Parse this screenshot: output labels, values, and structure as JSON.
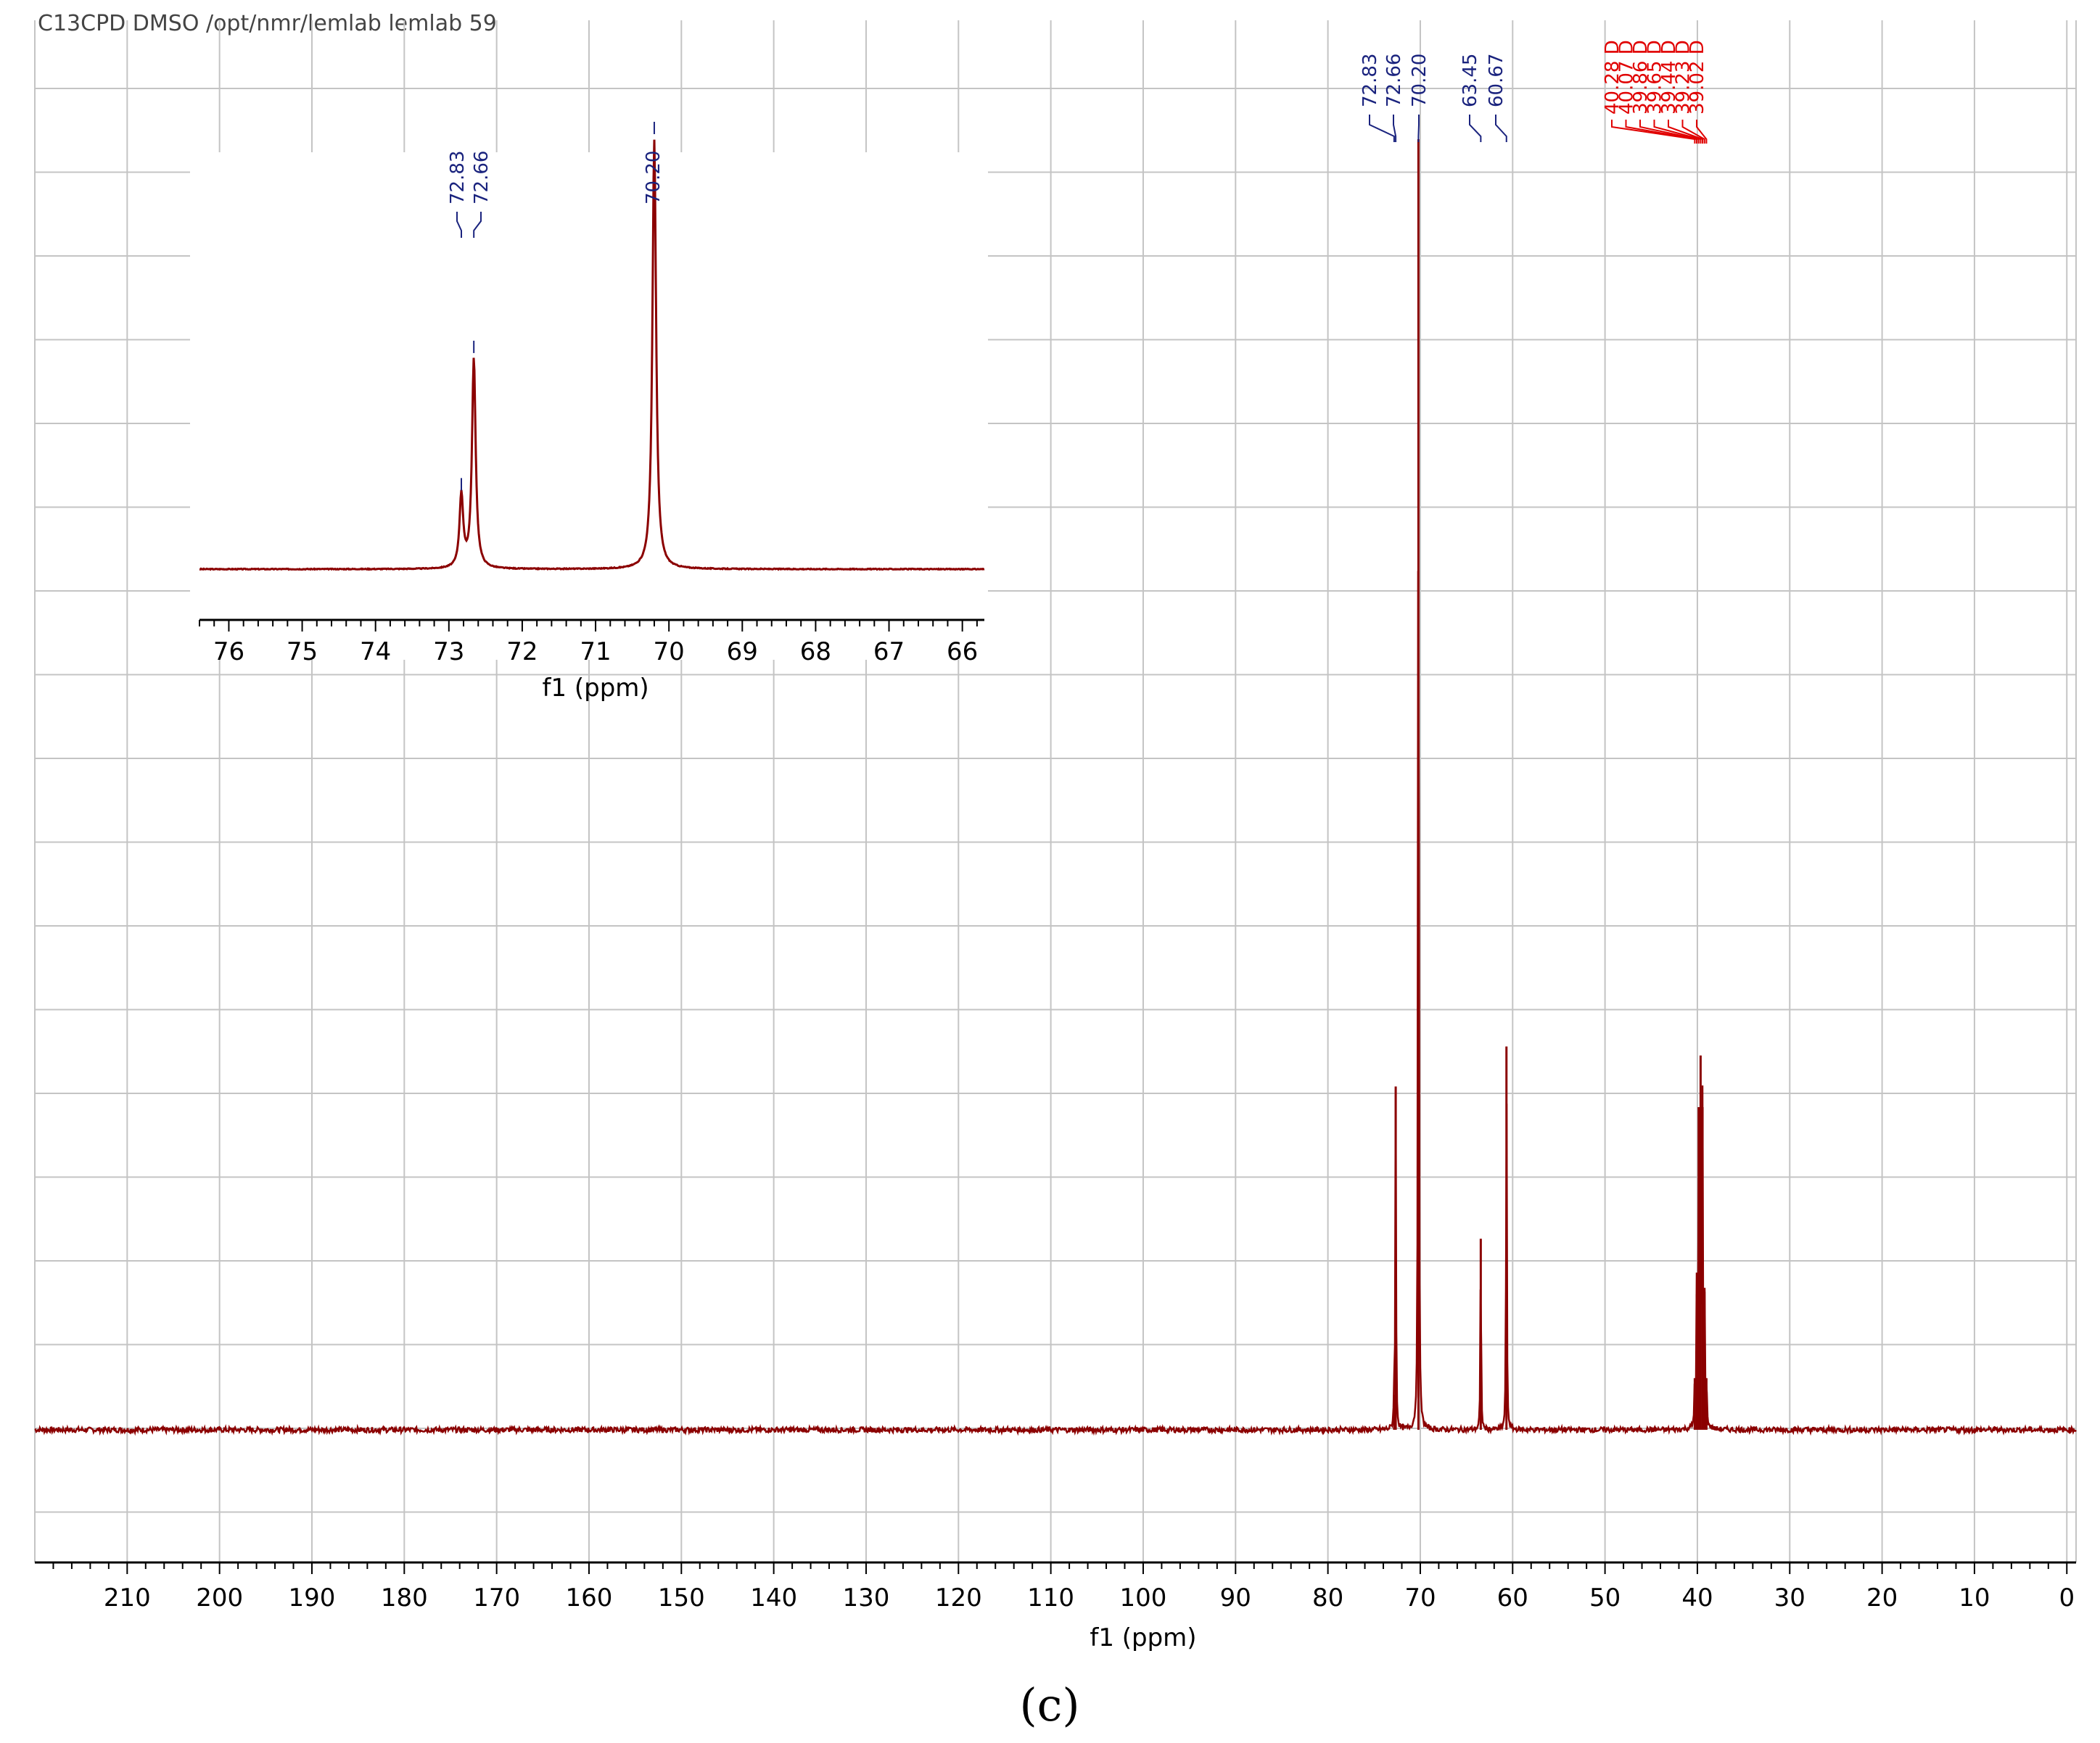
{
  "header_text": "C13CPD DMSO /opt/nmr/lemlab lemlab 59",
  "panel_label": "(c)",
  "colors": {
    "spectrum": "#8b0000",
    "grid": "#c4c4c4",
    "peak_label_blue": "#1a237e",
    "peak_label_red": "#e00000",
    "axis": "#000000"
  },
  "chart_data": [
    {
      "type": "line",
      "title": "",
      "xlabel": "f1 (ppm)",
      "ylabel": "",
      "xlim": [
        220,
        -1
      ],
      "x_reversed": true,
      "x_ticks": [
        210,
        200,
        190,
        180,
        170,
        160,
        150,
        140,
        130,
        120,
        110,
        100,
        90,
        80,
        70,
        60,
        50,
        40,
        30,
        20,
        10,
        0
      ],
      "grid": true,
      "legend": "none",
      "peaks": [
        {
          "ppm": 72.83,
          "height": 0.027
        },
        {
          "ppm": 72.66,
          "height": 0.266
        },
        {
          "ppm": 70.2,
          "height": 1.0
        },
        {
          "ppm": 63.45,
          "height": 0.148
        },
        {
          "ppm": 60.67,
          "height": 0.297
        },
        {
          "ppm": 40.28,
          "height": 0.04
        },
        {
          "ppm": 40.07,
          "height": 0.105
        },
        {
          "ppm": 39.86,
          "height": 0.25
        },
        {
          "ppm": 39.65,
          "height": 0.29
        },
        {
          "ppm": 39.44,
          "height": 0.25
        },
        {
          "ppm": 39.23,
          "height": 0.11
        },
        {
          "ppm": 39.02,
          "height": 0.04
        }
      ],
      "peak_labels": [
        {
          "text": "72.83",
          "ppm": 72.83,
          "group": "blue"
        },
        {
          "text": "72.66",
          "ppm": 72.66,
          "group": "blue"
        },
        {
          "text": "70.20",
          "ppm": 70.2,
          "group": "blue"
        },
        {
          "text": "63.45",
          "ppm": 63.45,
          "group": "blue"
        },
        {
          "text": "60.67",
          "ppm": 60.67,
          "group": "blue"
        },
        {
          "text": "40.28 D",
          "ppm": 40.28,
          "group": "red"
        },
        {
          "text": "40.07 D",
          "ppm": 40.07,
          "group": "red"
        },
        {
          "text": "39.86 D",
          "ppm": 39.86,
          "group": "red"
        },
        {
          "text": "39.65 D",
          "ppm": 39.65,
          "group": "red"
        },
        {
          "text": "39.44 D",
          "ppm": 39.44,
          "group": "red"
        },
        {
          "text": "39.23 D",
          "ppm": 39.23,
          "group": "red"
        },
        {
          "text": "39.02 D",
          "ppm": 39.02,
          "group": "red"
        }
      ]
    },
    {
      "type": "line",
      "title": "",
      "xlabel": "f1 (ppm)",
      "ylabel": "",
      "xlim": [
        76.4,
        65.7
      ],
      "x_reversed": true,
      "x_ticks": [
        76,
        75,
        74,
        73,
        72,
        71,
        70,
        69,
        68,
        67,
        66
      ],
      "grid": false,
      "legend": "none",
      "peaks": [
        {
          "ppm": 72.83,
          "height": 0.17
        },
        {
          "ppm": 72.66,
          "height": 0.49
        },
        {
          "ppm": 70.2,
          "height": 1.0
        }
      ],
      "peak_labels": [
        {
          "text": "72.83",
          "ppm": 72.83,
          "group": "blue"
        },
        {
          "text": "72.66",
          "ppm": 72.66,
          "group": "blue"
        },
        {
          "text": "70.20",
          "ppm": 70.2,
          "group": "blue"
        }
      ]
    }
  ]
}
